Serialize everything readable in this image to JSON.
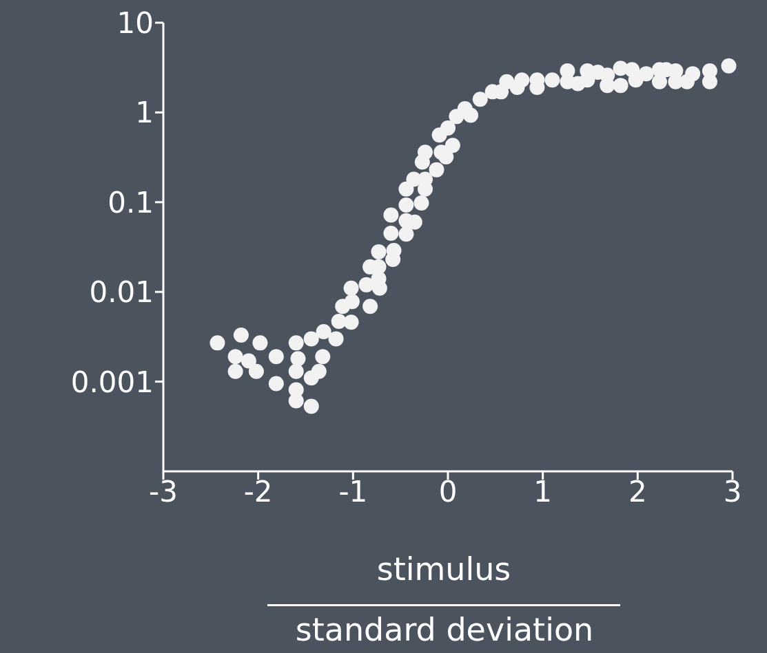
{
  "chart_data": {
    "type": "scatter",
    "xlabel": "stimulus",
    "annotations": [
      "standard deviation"
    ],
    "x": [
      -2.43,
      -2.18,
      -1.98,
      -2.24,
      -2.1,
      -2.24,
      -2.02,
      -1.81,
      -1.81,
      -1.6,
      -1.58,
      -1.6,
      -1.6,
      -1.6,
      -1.44,
      -1.44,
      -1.31,
      -1.18,
      -1.32,
      -1.36,
      -1.44,
      -1.15,
      -1.02,
      -1.11,
      -1.01,
      -1.02,
      -0.86,
      -0.82,
      -0.72,
      -0.73,
      -0.82,
      -0.73,
      -0.73,
      -0.58,
      -0.57,
      -0.6,
      -0.6,
      -0.44,
      -0.44,
      -0.35,
      -0.44,
      -0.28,
      -0.44,
      -0.24,
      -0.36,
      -0.24,
      -0.12,
      -0.27,
      -0.24,
      -0.07,
      -0.02,
      0.05,
      -0.09,
      0.0,
      0.09,
      0.18,
      0.24,
      0.34,
      0.47,
      0.56,
      0.62,
      0.73,
      0.78,
      0.94,
      0.94,
      1.1,
      1.26,
      1.26,
      1.37,
      1.47,
      1.47,
      1.58,
      1.68,
      1.68,
      1.82,
      1.82,
      1.94,
      1.98,
      2.09,
      2.23,
      2.23,
      2.3,
      2.4,
      2.4,
      2.52,
      2.58,
      2.76,
      2.76,
      2.96
    ],
    "values": [
      0.0027,
      0.0033,
      0.0027,
      0.0019,
      0.0017,
      0.0013,
      0.0013,
      0.0019,
      0.00095,
      0.0027,
      0.0018,
      0.0013,
      0.00081,
      0.00061,
      0.00053,
      0.003,
      0.0036,
      0.003,
      0.0019,
      0.0013,
      0.0011,
      0.0047,
      0.0046,
      0.0069,
      0.0078,
      0.011,
      0.012,
      0.0069,
      0.011,
      0.014,
      0.019,
      0.019,
      0.028,
      0.023,
      0.029,
      0.045,
      0.072,
      0.044,
      0.062,
      0.06,
      0.093,
      0.098,
      0.14,
      0.14,
      0.18,
      0.18,
      0.23,
      0.28,
      0.36,
      0.36,
      0.32,
      0.43,
      0.56,
      0.67,
      0.9,
      1.1,
      0.93,
      1.4,
      1.7,
      1.7,
      2.2,
      1.9,
      2.3,
      2.3,
      1.9,
      2.3,
      2.9,
      2.2,
      2.1,
      2.9,
      2.3,
      2.8,
      2.6,
      2.0,
      3.1,
      2.0,
      3.0,
      2.3,
      2.7,
      3.0,
      2.2,
      3.0,
      2.9,
      2.2,
      2.2,
      2.7,
      2.9,
      2.2,
      3.3
    ],
    "color": "#f2f2f2",
    "marker": "circle",
    "log": true,
    "xlim": [
      -3,
      3
    ],
    "xticks": [
      -3,
      -2,
      -1,
      0,
      1,
      2,
      3
    ],
    "ylim": [
      0.0001,
      10
    ],
    "yticks": [
      0.001,
      0.01,
      0.1,
      1,
      10
    ]
  }
}
